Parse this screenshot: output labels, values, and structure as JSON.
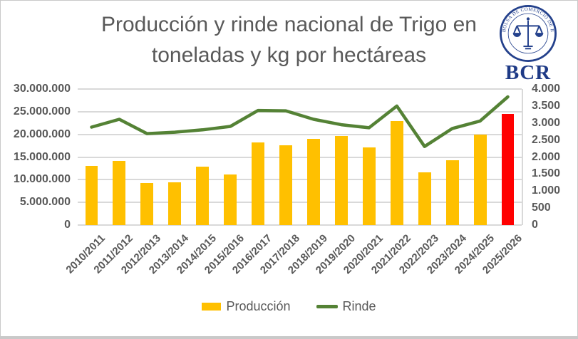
{
  "title": {
    "line1": "Producción y rinde nacional de Trigo  en",
    "line2": "toneladas y kg por hectáreas"
  },
  "logo": {
    "abbr": "BCR",
    "seal_text": "BOLSA DE COMERCIO DE ROSARIO"
  },
  "chart_data": {
    "type": "combo-bar-line",
    "title": "Producción y rinde nacional de Trigo en toneladas y kg por hectáreas",
    "categories": [
      "2010/2011",
      "2011/2012",
      "2012/2013",
      "2013/2014",
      "2014/2015",
      "2015/2016",
      "2016/2017",
      "2017/2018",
      "2018/2019",
      "2019/2020",
      "2020/2021",
      "2021/2022",
      "2022/2023",
      "2023/2024",
      "2024/2025",
      "2025/2026"
    ],
    "series": [
      {
        "name": "Producción",
        "type": "bar",
        "axis": "left",
        "color": "#FFC000",
        "highlight_index": 15,
        "highlight_color": "#FF0000",
        "values": [
          13000000,
          14100000,
          9200000,
          9500000,
          12900000,
          11100000,
          18200000,
          17600000,
          19000000,
          19600000,
          17100000,
          23000000,
          11600000,
          14300000,
          20000000,
          24500000
        ]
      },
      {
        "name": "Rinde",
        "type": "line",
        "axis": "right",
        "color": "#548235",
        "values": [
          2880,
          3110,
          2690,
          2730,
          2800,
          2900,
          3370,
          3360,
          3110,
          2950,
          2860,
          3500,
          2310,
          2840,
          3060,
          3770
        ]
      }
    ],
    "left_axis": {
      "min": 0,
      "max": 30000000,
      "step": 5000000,
      "labels": [
        "30.000.000",
        "25.000.000",
        "20.000.000",
        "15.000.000",
        "10.000.000",
        "5.000.000",
        "0"
      ]
    },
    "right_axis": {
      "min": 0,
      "max": 4000,
      "step": 500,
      "labels": [
        "4.000",
        "3.500",
        "3.000",
        "2.500",
        "2.000",
        "1.500",
        "1.000",
        "500",
        "0"
      ]
    },
    "grid": "horizontal",
    "legend_position": "bottom",
    "colors": {
      "grid": "#D9D9D9",
      "axis_text": "#595959",
      "title_text": "#595959",
      "logo_navy": "#24418C"
    }
  }
}
